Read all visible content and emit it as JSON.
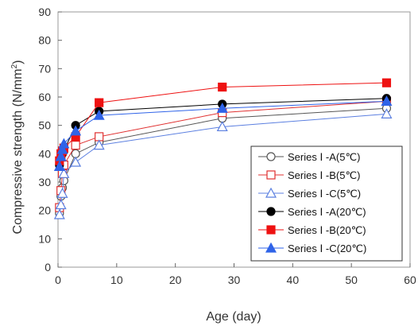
{
  "chart_data": {
    "type": "line",
    "xlabel": "Age (day)",
    "ylabel_main": "Compressive strength (N/mm",
    "ylabel_sup": "2",
    "ylabel_tail": ")",
    "xlim": [
      0,
      60
    ],
    "ylim": [
      0,
      90
    ],
    "xticks": [
      0,
      10,
      20,
      30,
      40,
      50,
      60
    ],
    "yticks": [
      0,
      10,
      20,
      30,
      40,
      50,
      60,
      70,
      80,
      90
    ],
    "grid": false,
    "legend_position": "lower-right",
    "series": [
      {
        "name": "Series Ⅰ -A(5℃)",
        "marker": "circle",
        "filled": false,
        "color": "#555555",
        "points": [
          [
            0.25,
            19
          ],
          [
            0.5,
            25
          ],
          [
            0.75,
            28
          ],
          [
            1,
            30.5
          ],
          [
            3,
            40
          ],
          [
            7,
            44
          ],
          [
            28,
            52.5
          ],
          [
            56,
            56
          ]
        ]
      },
      {
        "name": "Series Ⅰ -B(5℃)",
        "marker": "square",
        "filled": false,
        "color": "#e03030",
        "points": [
          [
            0.25,
            21
          ],
          [
            0.5,
            27
          ],
          [
            0.75,
            33
          ],
          [
            1,
            36
          ],
          [
            3,
            43
          ],
          [
            7,
            46
          ],
          [
            28,
            54.5
          ],
          [
            56,
            58.5
          ]
        ]
      },
      {
        "name": "Series Ⅰ -C(5℃)",
        "marker": "triangle",
        "filled": false,
        "color": "#5b7fe0",
        "points": [
          [
            0.25,
            18.5
          ],
          [
            0.5,
            22
          ],
          [
            0.75,
            26
          ],
          [
            1,
            33
          ],
          [
            3,
            37
          ],
          [
            7,
            43
          ],
          [
            28,
            49.5
          ],
          [
            56,
            54
          ]
        ]
      },
      {
        "name": "Series Ⅰ -A(20℃)",
        "marker": "circle",
        "filled": true,
        "color": "#000000",
        "points": [
          [
            0.25,
            36
          ],
          [
            0.5,
            38.5
          ],
          [
            0.75,
            40
          ],
          [
            1,
            41
          ],
          [
            3,
            50
          ],
          [
            7,
            55
          ],
          [
            28,
            57.5
          ],
          [
            56,
            59.5
          ]
        ]
      },
      {
        "name": "Series Ⅰ -B(20℃)",
        "marker": "square",
        "filled": true,
        "color": "#ee1111",
        "points": [
          [
            0.25,
            37.5
          ],
          [
            0.5,
            40
          ],
          [
            0.75,
            41
          ],
          [
            1,
            42
          ],
          [
            3,
            46
          ],
          [
            7,
            58
          ],
          [
            28,
            63.5
          ],
          [
            56,
            65
          ]
        ]
      },
      {
        "name": "Series Ⅰ -C(20℃)",
        "marker": "triangle",
        "filled": true,
        "color": "#2f63e8",
        "points": [
          [
            0.25,
            35.5
          ],
          [
            0.5,
            39
          ],
          [
            0.75,
            41.5
          ],
          [
            1,
            43.5
          ],
          [
            3,
            48
          ],
          [
            7,
            53.5
          ],
          [
            28,
            56
          ],
          [
            56,
            58.5
          ]
        ]
      }
    ]
  }
}
